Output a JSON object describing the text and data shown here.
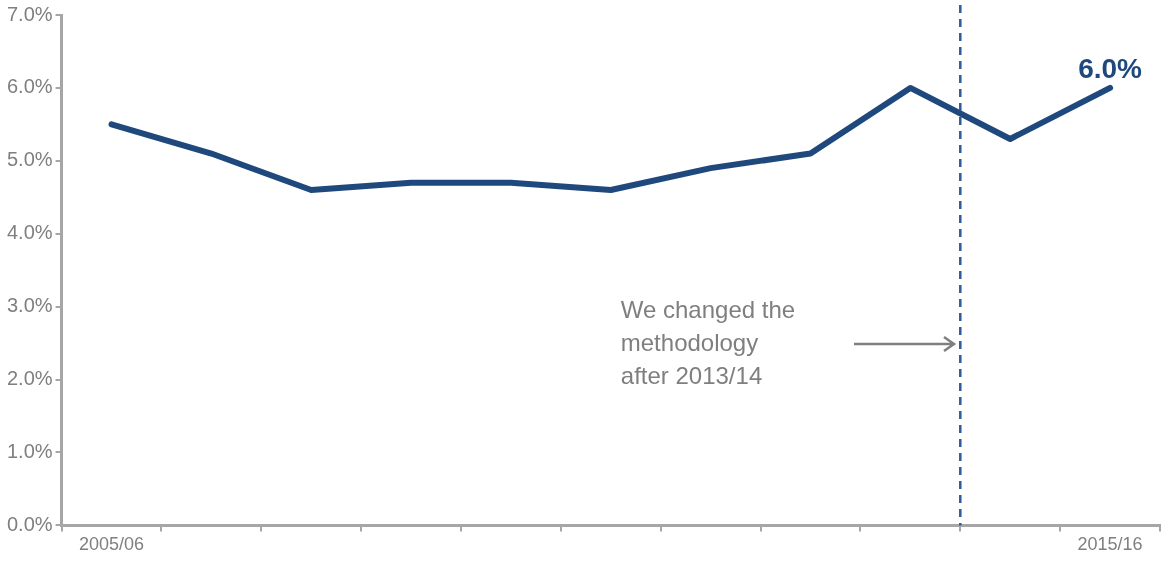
{
  "chart_data": {
    "type": "line",
    "categories": [
      "2005/06",
      null,
      null,
      null,
      null,
      null,
      null,
      null,
      null,
      null,
      "2015/16"
    ],
    "series": [
      {
        "color": "#1f497d",
        "values": [
          5.5,
          5.1,
          4.6,
          4.7,
          4.7,
          4.6,
          4.9,
          5.1,
          6.0,
          5.3,
          6.0
        ],
        "value_labels": [
          null,
          null,
          null,
          null,
          null,
          null,
          null,
          null,
          null,
          null,
          "6.0%"
        ]
      }
    ],
    "ylim": [
      0,
      7
    ],
    "yticks": [
      {
        "value": 0,
        "label": "0.0%"
      },
      {
        "value": 1,
        "label": "1.0%"
      },
      {
        "value": 2,
        "label": "2.0%"
      },
      {
        "value": 3,
        "label": "3.0%"
      },
      {
        "value": 4,
        "label": "4.0%"
      },
      {
        "value": 5,
        "label": "5.0%"
      },
      {
        "value": 6,
        "label": "6.0%"
      },
      {
        "value": 7,
        "label": "7.0%"
      }
    ],
    "annotations": [
      "We changed the methodology after 2013/14"
    ],
    "grid": false,
    "legend": false,
    "marker": "none",
    "line_style": "solid"
  }
}
